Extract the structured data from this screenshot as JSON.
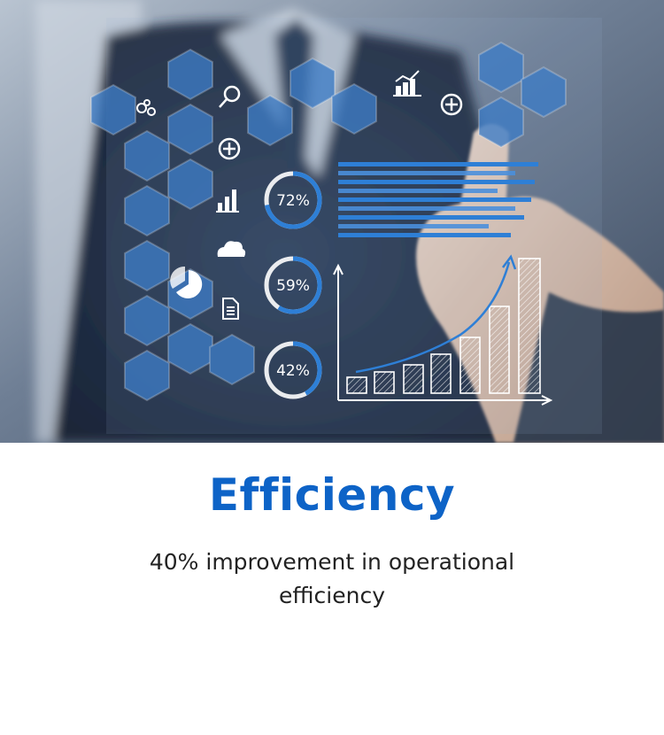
{
  "card": {
    "title": "Efficiency",
    "description": "40% improvement in operational efficiency"
  },
  "hero_image": {
    "dials": [
      {
        "label": "72%",
        "value": 0.72
      },
      {
        "label": "59%",
        "value": 0.59
      },
      {
        "label": "42%",
        "value": 0.42
      }
    ],
    "icons": [
      "gears-icon",
      "magnifier-icon",
      "plus-icon",
      "bar-chart-icon",
      "cloud-icon",
      "pie-chart-icon",
      "document-icon",
      "growth-chart-icon"
    ],
    "colors": {
      "accent": "#0d63c7",
      "hexagon": "#3d7cc6",
      "backdrop": "#5c6e87"
    }
  }
}
